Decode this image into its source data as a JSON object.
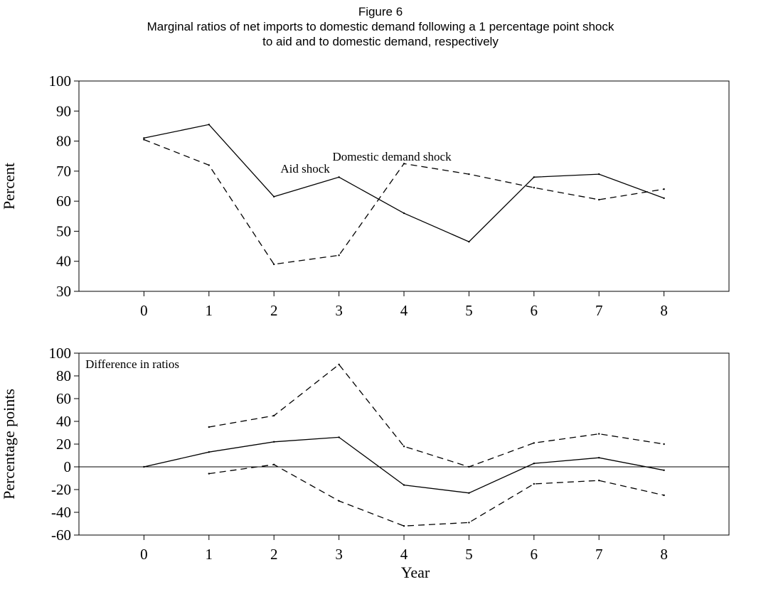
{
  "figure": {
    "label": "Figure 6",
    "title_line1": "Marginal ratios of net imports to domestic demand following a 1 percentage point shock",
    "title_line2": "to aid and to domestic demand, respectively",
    "xlabel": "Year"
  },
  "chart_data": [
    {
      "type": "line",
      "ylabel": "Percent",
      "ylim": [
        30,
        100
      ],
      "yticks": [
        30,
        40,
        50,
        60,
        70,
        80,
        90,
        100
      ],
      "xlim": [
        -1,
        9
      ],
      "x": [
        0,
        1,
        2,
        3,
        4,
        5,
        6,
        7,
        8
      ],
      "xticks": [
        0,
        1,
        2,
        3,
        4,
        5,
        6,
        7,
        8
      ],
      "series": [
        {
          "name": "Aid shock",
          "style": "solid",
          "x": [
            0,
            1,
            2,
            3,
            4,
            5,
            6,
            7,
            8
          ],
          "values": [
            81,
            85.5,
            61.5,
            68,
            56,
            46.5,
            68,
            69,
            61
          ]
        },
        {
          "name": "Domestic demand shock",
          "style": "dashed",
          "x": [
            0,
            1,
            2,
            3,
            4,
            5,
            6,
            7,
            8
          ],
          "values": [
            80.5,
            72,
            39,
            42,
            72.5,
            69,
            64.5,
            60.5,
            64
          ]
        }
      ],
      "annotations": [
        {
          "text": "Aid shock",
          "x": 2.1,
          "y": 69.5
        },
        {
          "text": "Domestic demand shock",
          "x": 2.9,
          "y": 73.5
        }
      ],
      "grid": false
    },
    {
      "type": "line",
      "ylabel": "Percentage points",
      "ylim": [
        -60,
        100
      ],
      "yticks": [
        -60,
        -40,
        -20,
        0,
        20,
        40,
        60,
        80,
        100
      ],
      "xlim": [
        -1,
        9
      ],
      "xticks": [
        0,
        1,
        2,
        3,
        4,
        5,
        6,
        7,
        8
      ],
      "zero_line": true,
      "series": [
        {
          "style": "solid",
          "x": [
            0,
            1,
            2,
            3,
            4,
            5,
            6,
            7,
            8
          ],
          "values": [
            0,
            13,
            22,
            26,
            -16,
            -23,
            3,
            8,
            -3
          ]
        },
        {
          "style": "dashed",
          "x": [
            1,
            2,
            3,
            4,
            5,
            6,
            7,
            8
          ],
          "values": [
            35,
            45,
            90,
            18,
            0,
            21,
            29,
            20
          ]
        },
        {
          "style": "dashed",
          "x": [
            1,
            2,
            3,
            4,
            5,
            6,
            7,
            8
          ],
          "values": [
            -6,
            2,
            -30,
            -52,
            -49,
            -15,
            -12,
            -25
          ]
        }
      ],
      "annotations": [
        {
          "text": "Difference in ratios",
          "x": -0.9,
          "y": 87
        }
      ],
      "grid": false
    }
  ]
}
